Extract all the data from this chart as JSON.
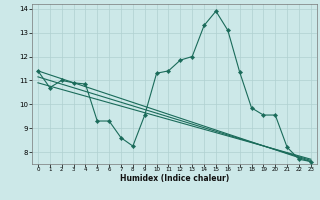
{
  "title": "",
  "xlabel": "Humidex (Indice chaleur)",
  "xlim": [
    -0.5,
    23.5
  ],
  "ylim": [
    7.5,
    14.2
  ],
  "yticks": [
    8,
    9,
    10,
    11,
    12,
    13,
    14
  ],
  "xticks": [
    0,
    1,
    2,
    3,
    4,
    5,
    6,
    7,
    8,
    9,
    10,
    11,
    12,
    13,
    14,
    15,
    16,
    17,
    18,
    19,
    20,
    21,
    22,
    23
  ],
  "bg_color": "#cce8e8",
  "line_color": "#1a6b5a",
  "grid_color": "#b0d0d0",
  "lines": [
    {
      "x": [
        0,
        1,
        2,
        3,
        4,
        5,
        6,
        7,
        8,
        9,
        10,
        11,
        12,
        13,
        14,
        15,
        16,
        17,
        18,
        19,
        20,
        21,
        22,
        23
      ],
      "y": [
        11.4,
        10.7,
        11.0,
        10.9,
        10.85,
        9.3,
        9.3,
        8.6,
        8.25,
        9.55,
        11.3,
        11.4,
        11.85,
        12.0,
        13.3,
        13.9,
        13.1,
        11.35,
        9.85,
        9.55,
        9.55,
        8.2,
        7.7,
        7.6
      ],
      "marker": true
    },
    {
      "x": [
        0,
        23
      ],
      "y": [
        11.4,
        7.6
      ],
      "marker": false
    },
    {
      "x": [
        0,
        23
      ],
      "y": [
        11.15,
        7.65
      ],
      "marker": false
    },
    {
      "x": [
        0,
        23
      ],
      "y": [
        10.9,
        7.7
      ],
      "marker": false
    }
  ]
}
